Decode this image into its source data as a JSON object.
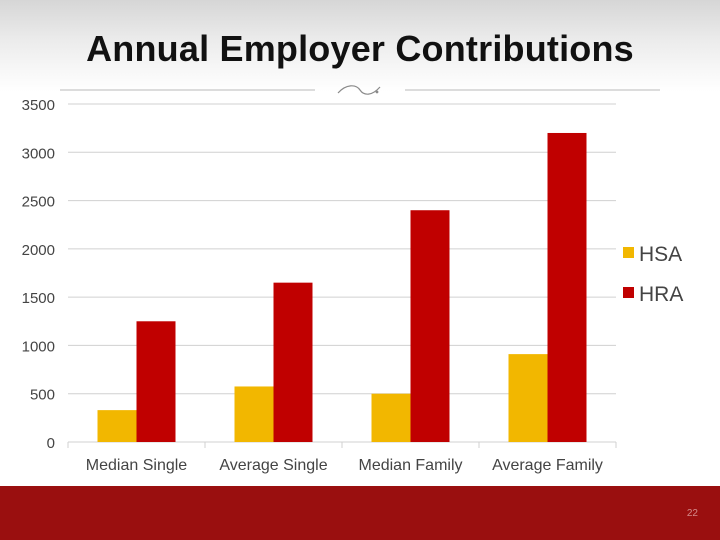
{
  "slide": {
    "title": "Annual Employer Contributions",
    "page_number": "22"
  },
  "colors": {
    "HSA": "#f2b700",
    "HRA": "#c00000",
    "grid": "#d0d0d0",
    "axis_text": "#444444",
    "footer": "#9a0f0f"
  },
  "chart_data": {
    "type": "bar",
    "title": "Annual Employer Contributions",
    "categories": [
      "Median Single",
      "Average Single",
      "Median Family",
      "Average Family"
    ],
    "series": [
      {
        "name": "HSA",
        "values": [
          330,
          575,
          500,
          910
        ]
      },
      {
        "name": "HRA",
        "values": [
          1250,
          1650,
          2400,
          3200
        ]
      }
    ],
    "ylim": [
      0,
      3500
    ],
    "yticks": [
      "0",
      "500",
      "1000",
      "1500",
      "2000",
      "2500",
      "3000",
      "3500"
    ],
    "grid": true,
    "legend": "right"
  }
}
